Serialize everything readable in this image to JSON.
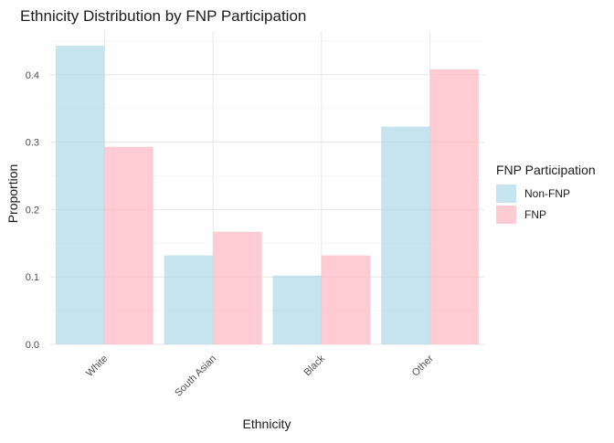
{
  "chart_data": {
    "type": "bar",
    "title": "Ethnicity Distribution by FNP Participation",
    "xlabel": "Ethnicity",
    "ylabel": "Proportion",
    "categories": [
      "White",
      "South Asian",
      "Black",
      "Other"
    ],
    "series": [
      {
        "name": "Non-FNP",
        "color": "#add8e6",
        "values": [
          0.443,
          0.132,
          0.102,
          0.323
        ]
      },
      {
        "name": "FNP",
        "color": "#ffb6c1",
        "values": [
          0.293,
          0.167,
          0.132,
          0.408
        ]
      }
    ],
    "ylim": [
      0,
      0.45
    ],
    "yticks": [
      "0.0",
      "0.1",
      "0.2",
      "0.3",
      "0.4"
    ],
    "grid": true,
    "bar_opacity": 0.7,
    "legend": {
      "title": "FNP Participation",
      "position": "right",
      "entries": [
        "Non-FNP",
        "FNP"
      ]
    }
  }
}
